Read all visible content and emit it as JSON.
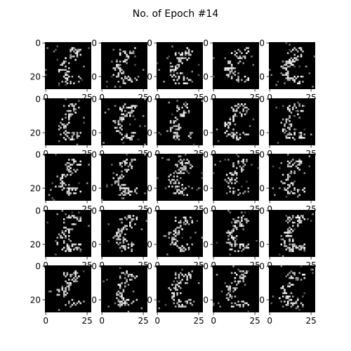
{
  "figure": {
    "title": "No. of Epoch #14"
  },
  "chart_data": {
    "type": "heatmap",
    "title": "No. of Epoch #14",
    "layout": {
      "rows": 5,
      "cols": 5
    },
    "image_size": [
      28,
      28
    ],
    "colormap": "gray",
    "x_tick_labels": [
      "0",
      "25"
    ],
    "y_tick_labels": [
      "0",
      "20"
    ],
    "xlim": [
      0,
      28
    ],
    "ylim": [
      28,
      0
    ],
    "grid": false,
    "subplots_count": 25,
    "description": "25 generated 28x28 grayscale digit-like samples (white sparse pixels on black background)"
  },
  "colors": {
    "background": "#ffffff",
    "image_background": "#000000",
    "pixel": "#ffffff",
    "axis": "#000000"
  }
}
